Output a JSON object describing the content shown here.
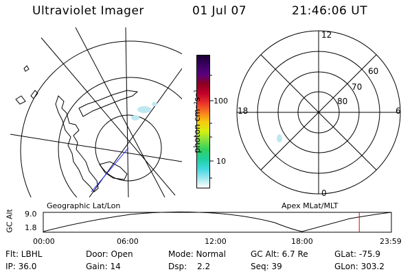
{
  "header": {
    "instrument": "Ultraviolet Imager",
    "date": "01 Jul 07",
    "time": "21:46:06 UT"
  },
  "colorbar": {
    "unit_label": "photon cm⁻²s⁻¹",
    "ticks": [
      "100",
      "10"
    ],
    "colors_top_to_bottom": [
      "#1a0030",
      "#3a0060",
      "#5a0080",
      "#8a0020",
      "#c0002a",
      "#e8302a",
      "#f87820",
      "#f8c810",
      "#d8f010",
      "#80e040",
      "#30d060",
      "#20d0a0",
      "#40d8e0",
      "#a0e8f0",
      "#ffffff"
    ]
  },
  "left_panel": {
    "label": "Geographic Lat/Lon"
  },
  "right_panel": {
    "label": "Apex MLat/MLT",
    "mlt_labels": {
      "top": "12",
      "left": "18",
      "right": "6",
      "bottom": "0"
    },
    "lat_labels": [
      "60",
      "70",
      "80"
    ]
  },
  "altitude_plot": {
    "ylabel": "GC Alt",
    "ytick_high": "9.0",
    "ytick_low": "1.8",
    "xticks": [
      "00:00",
      "06:00",
      "12:00",
      "18:00",
      "23:59"
    ],
    "current_time_marker_hours": 21.77,
    "marker_color": "#e00000"
  },
  "footer": {
    "row1": {
      "filter": "Flt: LBHL",
      "door": "Door: Open",
      "mode": "Mode: Normal",
      "gc_alt": "GC Alt: 6.7 Re",
      "glat": "GLat: -75.9"
    },
    "row2": {
      "ip": "IP: 36.0",
      "gain": "Gain: 14",
      "dsp_label": "Dsp:",
      "dsp_value": "2.2",
      "seq": "Seq: 39",
      "glon": "GLon: 303.2"
    }
  }
}
